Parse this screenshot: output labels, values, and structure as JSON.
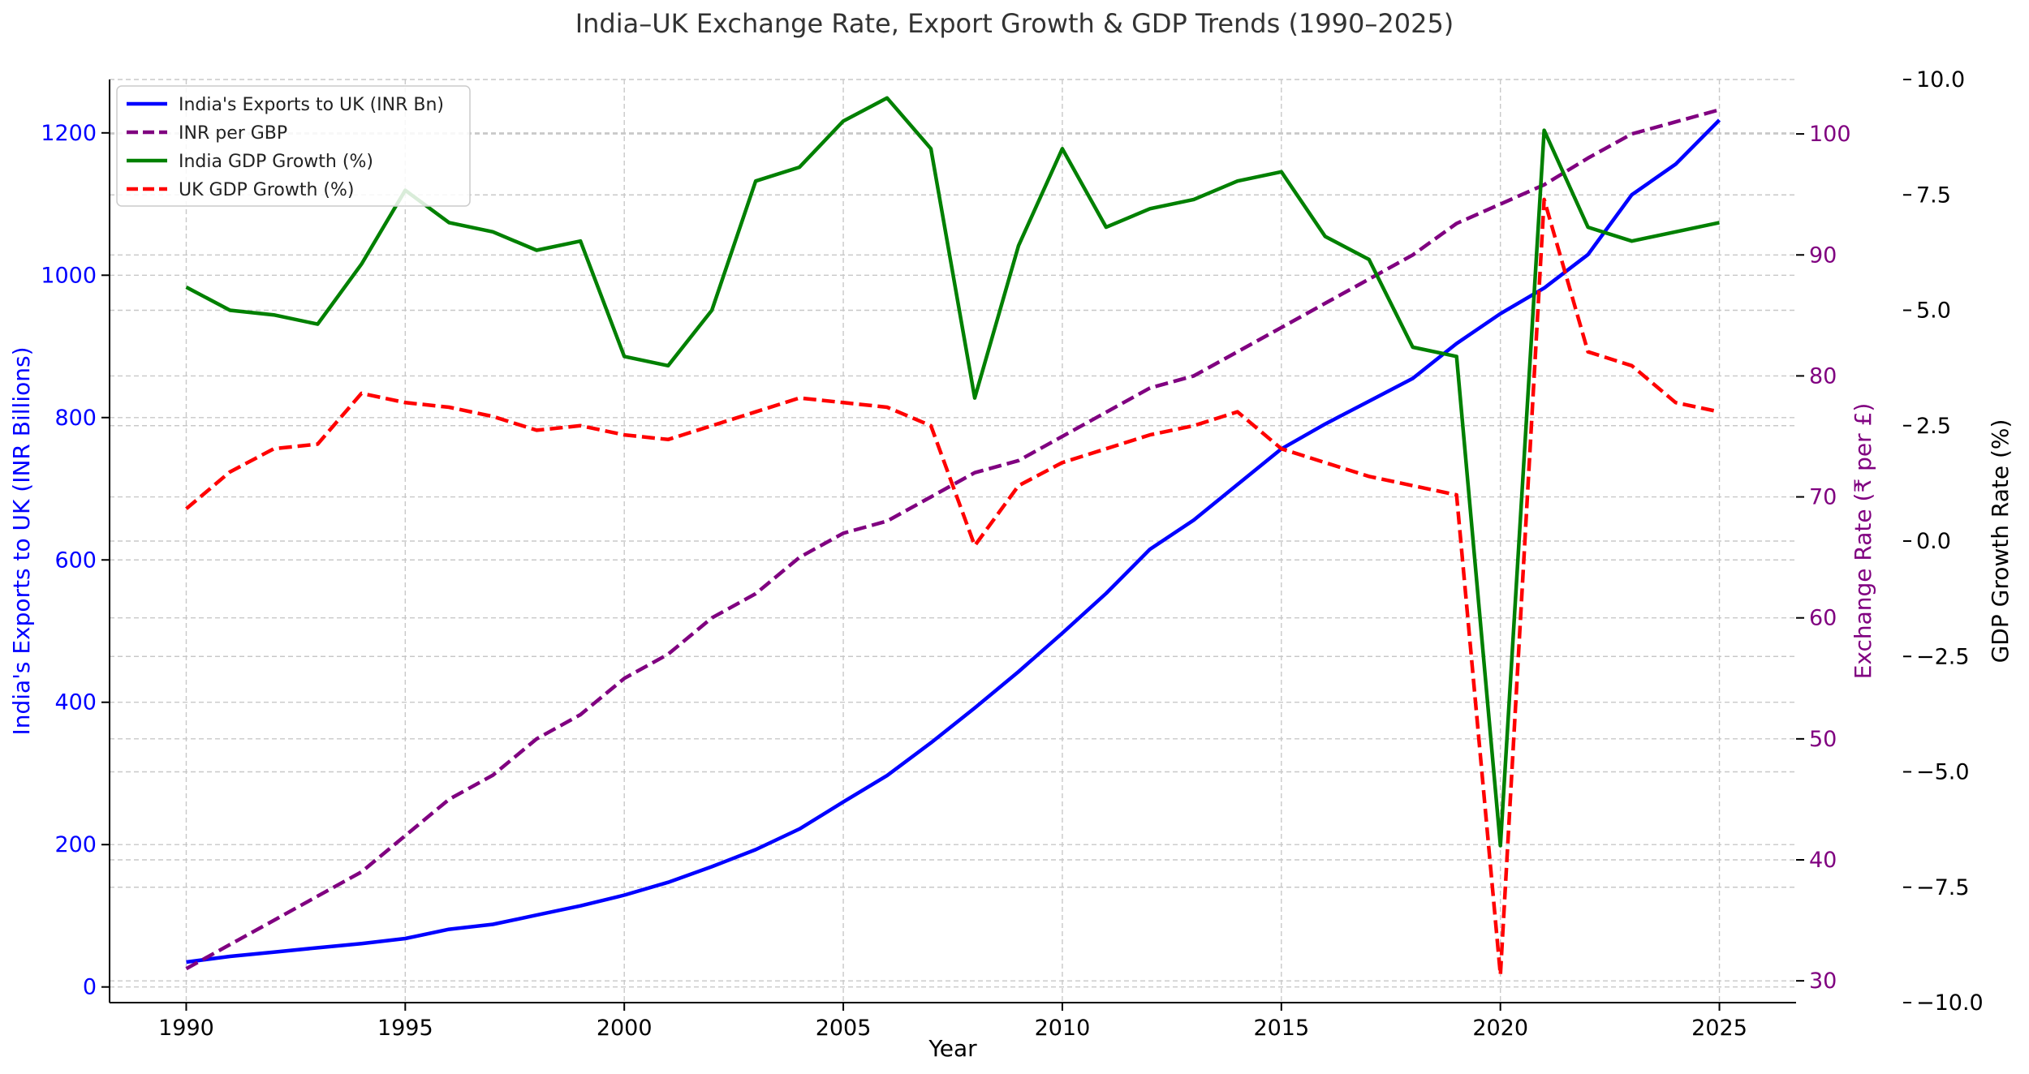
{
  "chart_data": {
    "type": "line",
    "title": "India–UK Exchange Rate, Export Growth & GDP Trends (1990–2025)",
    "xlabel": "Year",
    "ylabel_left": "India's Exports to UK (INR Billions)",
    "ylabel_right1": "Exchange Rate (₹ per £)",
    "ylabel_right2": "GDP Growth Rate (%)",
    "x": [
      1990,
      1991,
      1992,
      1993,
      1994,
      1995,
      1996,
      1997,
      1998,
      1999,
      2000,
      2001,
      2002,
      2003,
      2004,
      2005,
      2006,
      2007,
      2008,
      2009,
      2010,
      2011,
      2012,
      2013,
      2014,
      2015,
      2016,
      2017,
      2018,
      2019,
      2020,
      2021,
      2022,
      2023,
      2024,
      2025
    ],
    "xlim": [
      1988.25,
      2026.75
    ],
    "x_ticks": [
      1990,
      1995,
      2000,
      2005,
      2010,
      2015,
      2020,
      2025
    ],
    "axes": {
      "left": {
        "ylim": [
          -22,
          1275
        ],
        "ticks": [
          0,
          200,
          400,
          600,
          800,
          1000,
          1200
        ],
        "color": "#0000ff"
      },
      "right1": {
        "ylim": [
          28.2,
          104.5
        ],
        "ticks": [
          30,
          40,
          50,
          60,
          70,
          80,
          90,
          100
        ],
        "color": "#800080"
      },
      "right2": {
        "ylim": [
          -10.0,
          10.0
        ],
        "ticks": [
          "−10.0",
          "−7.5",
          "−5.0",
          "−2.5",
          "0.0",
          "2.5",
          "5.0",
          "7.5",
          "10.0"
        ],
        "tick_values": [
          -10,
          -7.5,
          -5,
          -2.5,
          0,
          2.5,
          5,
          7.5,
          10
        ],
        "color": "#000000"
      }
    },
    "series": [
      {
        "name": "India's Exports to UK (INR Bn)",
        "axis": "left",
        "color": "#0000ff",
        "dash": "solid",
        "values": [
          35,
          43,
          49,
          55,
          61,
          68,
          81,
          88,
          101,
          114,
          129,
          147,
          169,
          193,
          222,
          260,
          297,
          343,
          392,
          443,
          497,
          553,
          615,
          656,
          706,
          756,
          791,
          823,
          855,
          904,
          946,
          982,
          1029,
          1113,
          1156,
          1218
        ]
      },
      {
        "name": "INR per GBP",
        "axis": "right1",
        "color": "#800080",
        "dash": "dashed",
        "values": [
          31,
          33,
          35,
          37,
          39,
          42,
          45,
          47,
          50,
          52,
          55,
          57,
          60,
          62,
          65,
          67,
          68,
          70,
          72,
          73,
          75,
          77,
          79,
          80,
          82,
          84,
          86,
          88,
          90,
          92.6,
          94.2,
          95.8,
          98,
          100,
          101,
          102
        ]
      },
      {
        "name": "India GDP Growth (%)",
        "axis": "right2",
        "color": "#008000",
        "dash": "solid",
        "values": [
          5.5,
          5.0,
          4.9,
          4.7,
          6.0,
          7.6,
          6.9,
          6.7,
          6.3,
          6.5,
          4.0,
          3.8,
          5.0,
          7.8,
          8.1,
          9.1,
          9.6,
          8.5,
          3.1,
          6.4,
          8.5,
          6.8,
          7.2,
          7.4,
          7.8,
          8.0,
          6.6,
          6.1,
          4.2,
          4.0,
          -6.6,
          8.9,
          6.8,
          6.5,
          6.7,
          6.9
        ]
      },
      {
        "name": "UK GDP Growth (%)",
        "axis": "right2",
        "color": "#ff0000",
        "dash": "dashed",
        "values": [
          0.7,
          1.5,
          2.0,
          2.1,
          3.2,
          3.0,
          2.9,
          2.7,
          2.4,
          2.5,
          2.3,
          2.2,
          2.5,
          2.8,
          3.1,
          3.0,
          2.9,
          2.5,
          -0.1,
          1.2,
          1.7,
          2.0,
          2.3,
          2.5,
          2.8,
          2.0,
          1.7,
          1.4,
          1.2,
          1.0,
          -9.4,
          7.4,
          4.1,
          3.8,
          3.0,
          2.8
        ]
      }
    ],
    "legend_position": "top-left",
    "grid": true
  }
}
